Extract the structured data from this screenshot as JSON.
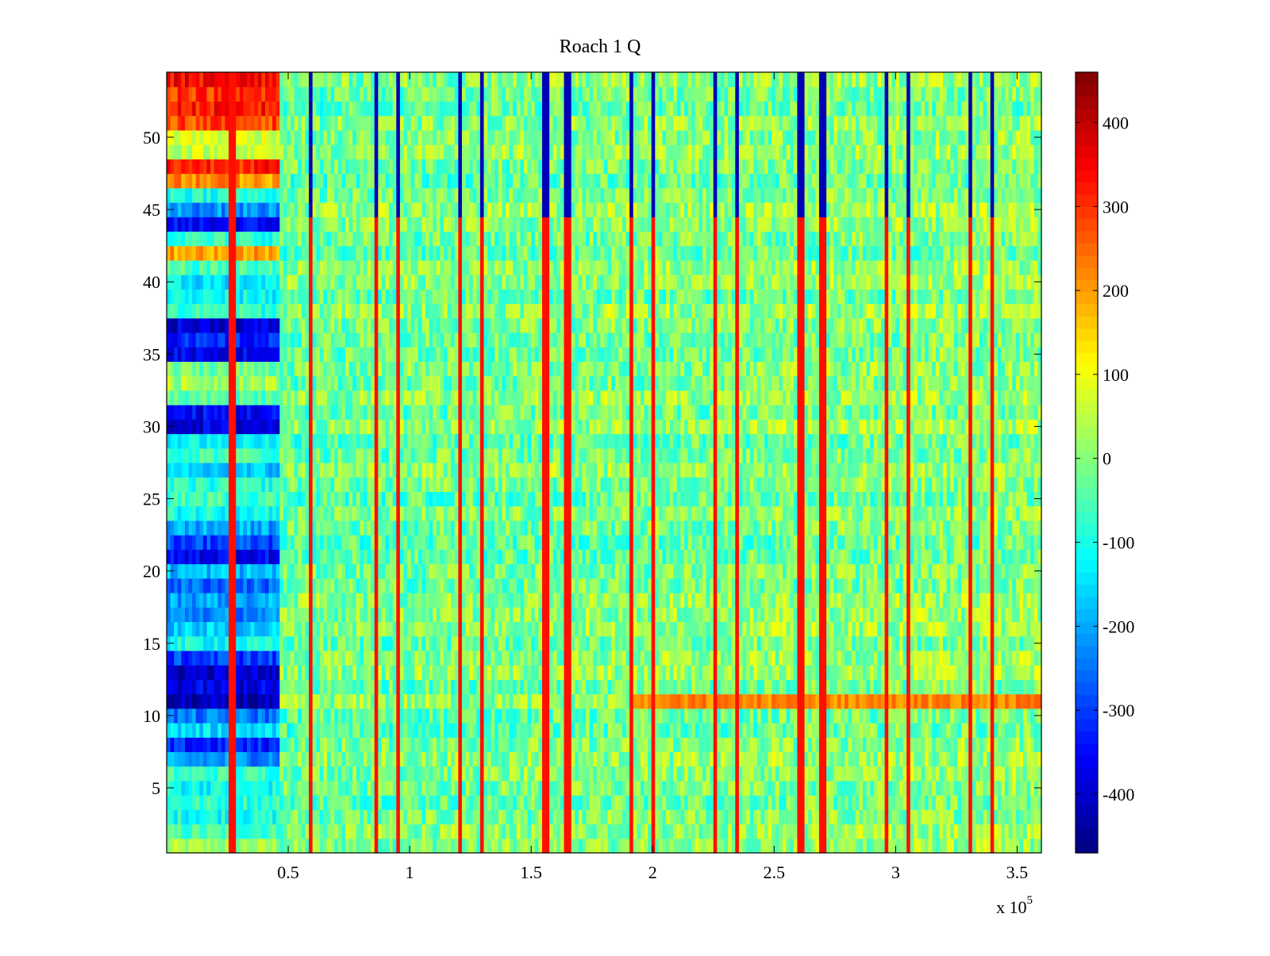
{
  "chart_data": {
    "type": "heatmap",
    "title": "Roach 1 Q",
    "xlabel": "",
    "ylabel": "",
    "x_multiplier_label": "x 10",
    "x_multiplier_exponent": "5",
    "xlim": [
      0,
      3.6
    ],
    "ylim": [
      0.5,
      54.5
    ],
    "x_ticks": [
      0.5,
      1,
      1.5,
      2,
      2.5,
      3,
      3.5
    ],
    "x_tick_labels": [
      "0.5",
      "1",
      "1.5",
      "2",
      "2.5",
      "3",
      "3.5"
    ],
    "y_ticks": [
      5,
      10,
      15,
      20,
      25,
      30,
      35,
      40,
      45,
      50
    ],
    "y_tick_labels": [
      "5",
      "10",
      "15",
      "20",
      "25",
      "30",
      "35",
      "40",
      "45",
      "50"
    ],
    "colormap": "jet",
    "color_limits": [
      -470,
      460
    ],
    "colorbar_ticks": [
      -400,
      -300,
      -200,
      -100,
      0,
      100,
      200,
      300,
      400
    ],
    "colorbar_tick_labels": [
      "-400",
      "-300",
      "-200",
      "-100",
      "0",
      "100",
      "200",
      "300",
      "400"
    ],
    "rows": 54,
    "early_block_x_end": 0.47,
    "early_block_row_values": {
      "1": 20,
      "2": -60,
      "3": -100,
      "4": -80,
      "5": -110,
      "6": -70,
      "7": -220,
      "8": -330,
      "9": -150,
      "10": -250,
      "11": -430,
      "12": -380,
      "13": -400,
      "14": -300,
      "15": -110,
      "16": -170,
      "17": -230,
      "18": -200,
      "19": -260,
      "20": -180,
      "21": -360,
      "22": -290,
      "23": -200,
      "24": -100,
      "25": -60,
      "26": -90,
      "27": -180,
      "28": -60,
      "29": -120,
      "30": -380,
      "31": -360,
      "32": -50,
      "33": 30,
      "34": -20,
      "35": -360,
      "36": -330,
      "37": -390,
      "38": -80,
      "39": -120,
      "40": -140,
      "41": -60,
      "42": 200,
      "43": -80,
      "44": -360,
      "45": -220,
      "46": -90,
      "47": 210,
      "48": 320,
      "49": 60,
      "50": 80,
      "51": 280,
      "52": 320,
      "53": 300,
      "54": 340
    },
    "vertical_spikes_x": [
      0.27,
      0.59,
      0.86,
      0.95,
      1.21,
      1.3,
      1.56,
      1.65,
      1.91,
      2.0,
      2.26,
      2.35,
      2.61,
      2.7,
      2.96,
      3.05,
      3.31,
      3.4
    ],
    "spike_peak_value": 330,
    "spike_upper_rows_value": -420,
    "spike_upper_rows_from": 45,
    "bright_band_row": 11,
    "bright_band_x_start": 1.9,
    "bright_band_value": 220,
    "background_value_range": [
      -110,
      110
    ]
  }
}
